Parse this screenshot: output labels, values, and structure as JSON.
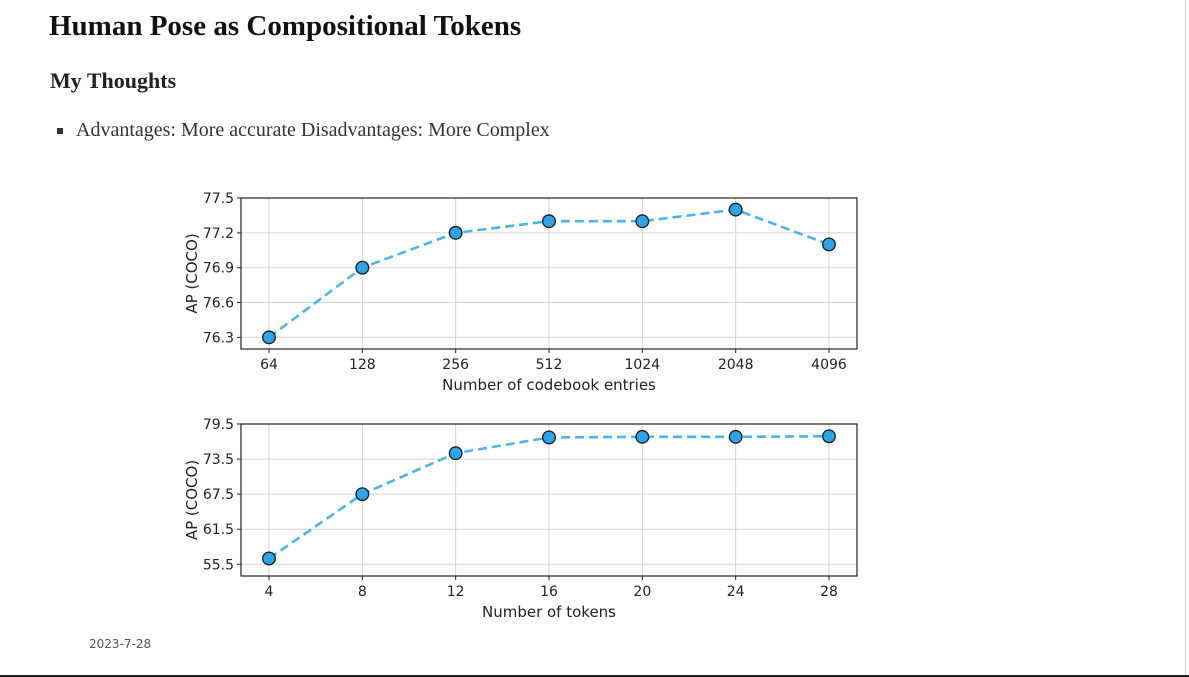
{
  "page": {
    "title": "Human Pose as Compositional Tokens",
    "section": "My Thoughts",
    "bullets": [
      "Advantages: More accurate  Disadvantages: More Complex"
    ],
    "date": "2023-7-28"
  },
  "colors": {
    "series": "#4db4ea",
    "marker": "#2ea3e6",
    "grid": "#d3d3d3"
  },
  "chart_data": [
    {
      "type": "line",
      "categories": [
        "64",
        "128",
        "256",
        "512",
        "1024",
        "2048",
        "4096"
      ],
      "series": [
        {
          "values": [
            76.3,
            76.9,
            77.2,
            77.3,
            77.3,
            77.4,
            77.1
          ]
        }
      ],
      "title": "",
      "xlabel": "Number of codebook entries",
      "ylabel": "AP (COCO)",
      "yticks": [
        76.3,
        76.6,
        76.9,
        77.2,
        77.5
      ],
      "ylim": [
        76.2,
        77.5
      ],
      "grid": true
    },
    {
      "type": "line",
      "categories": [
        "4",
        "8",
        "12",
        "16",
        "20",
        "24",
        "28"
      ],
      "series": [
        {
          "values": [
            56.5,
            67.5,
            74.5,
            77.2,
            77.3,
            77.3,
            77.4
          ]
        }
      ],
      "title": "",
      "xlabel": "Number of tokens",
      "ylabel": "AP (COCO)",
      "yticks": [
        55.5,
        61.5,
        67.5,
        73.5,
        79.5
      ],
      "ylim": [
        53.5,
        79.5
      ],
      "grid": true
    }
  ]
}
